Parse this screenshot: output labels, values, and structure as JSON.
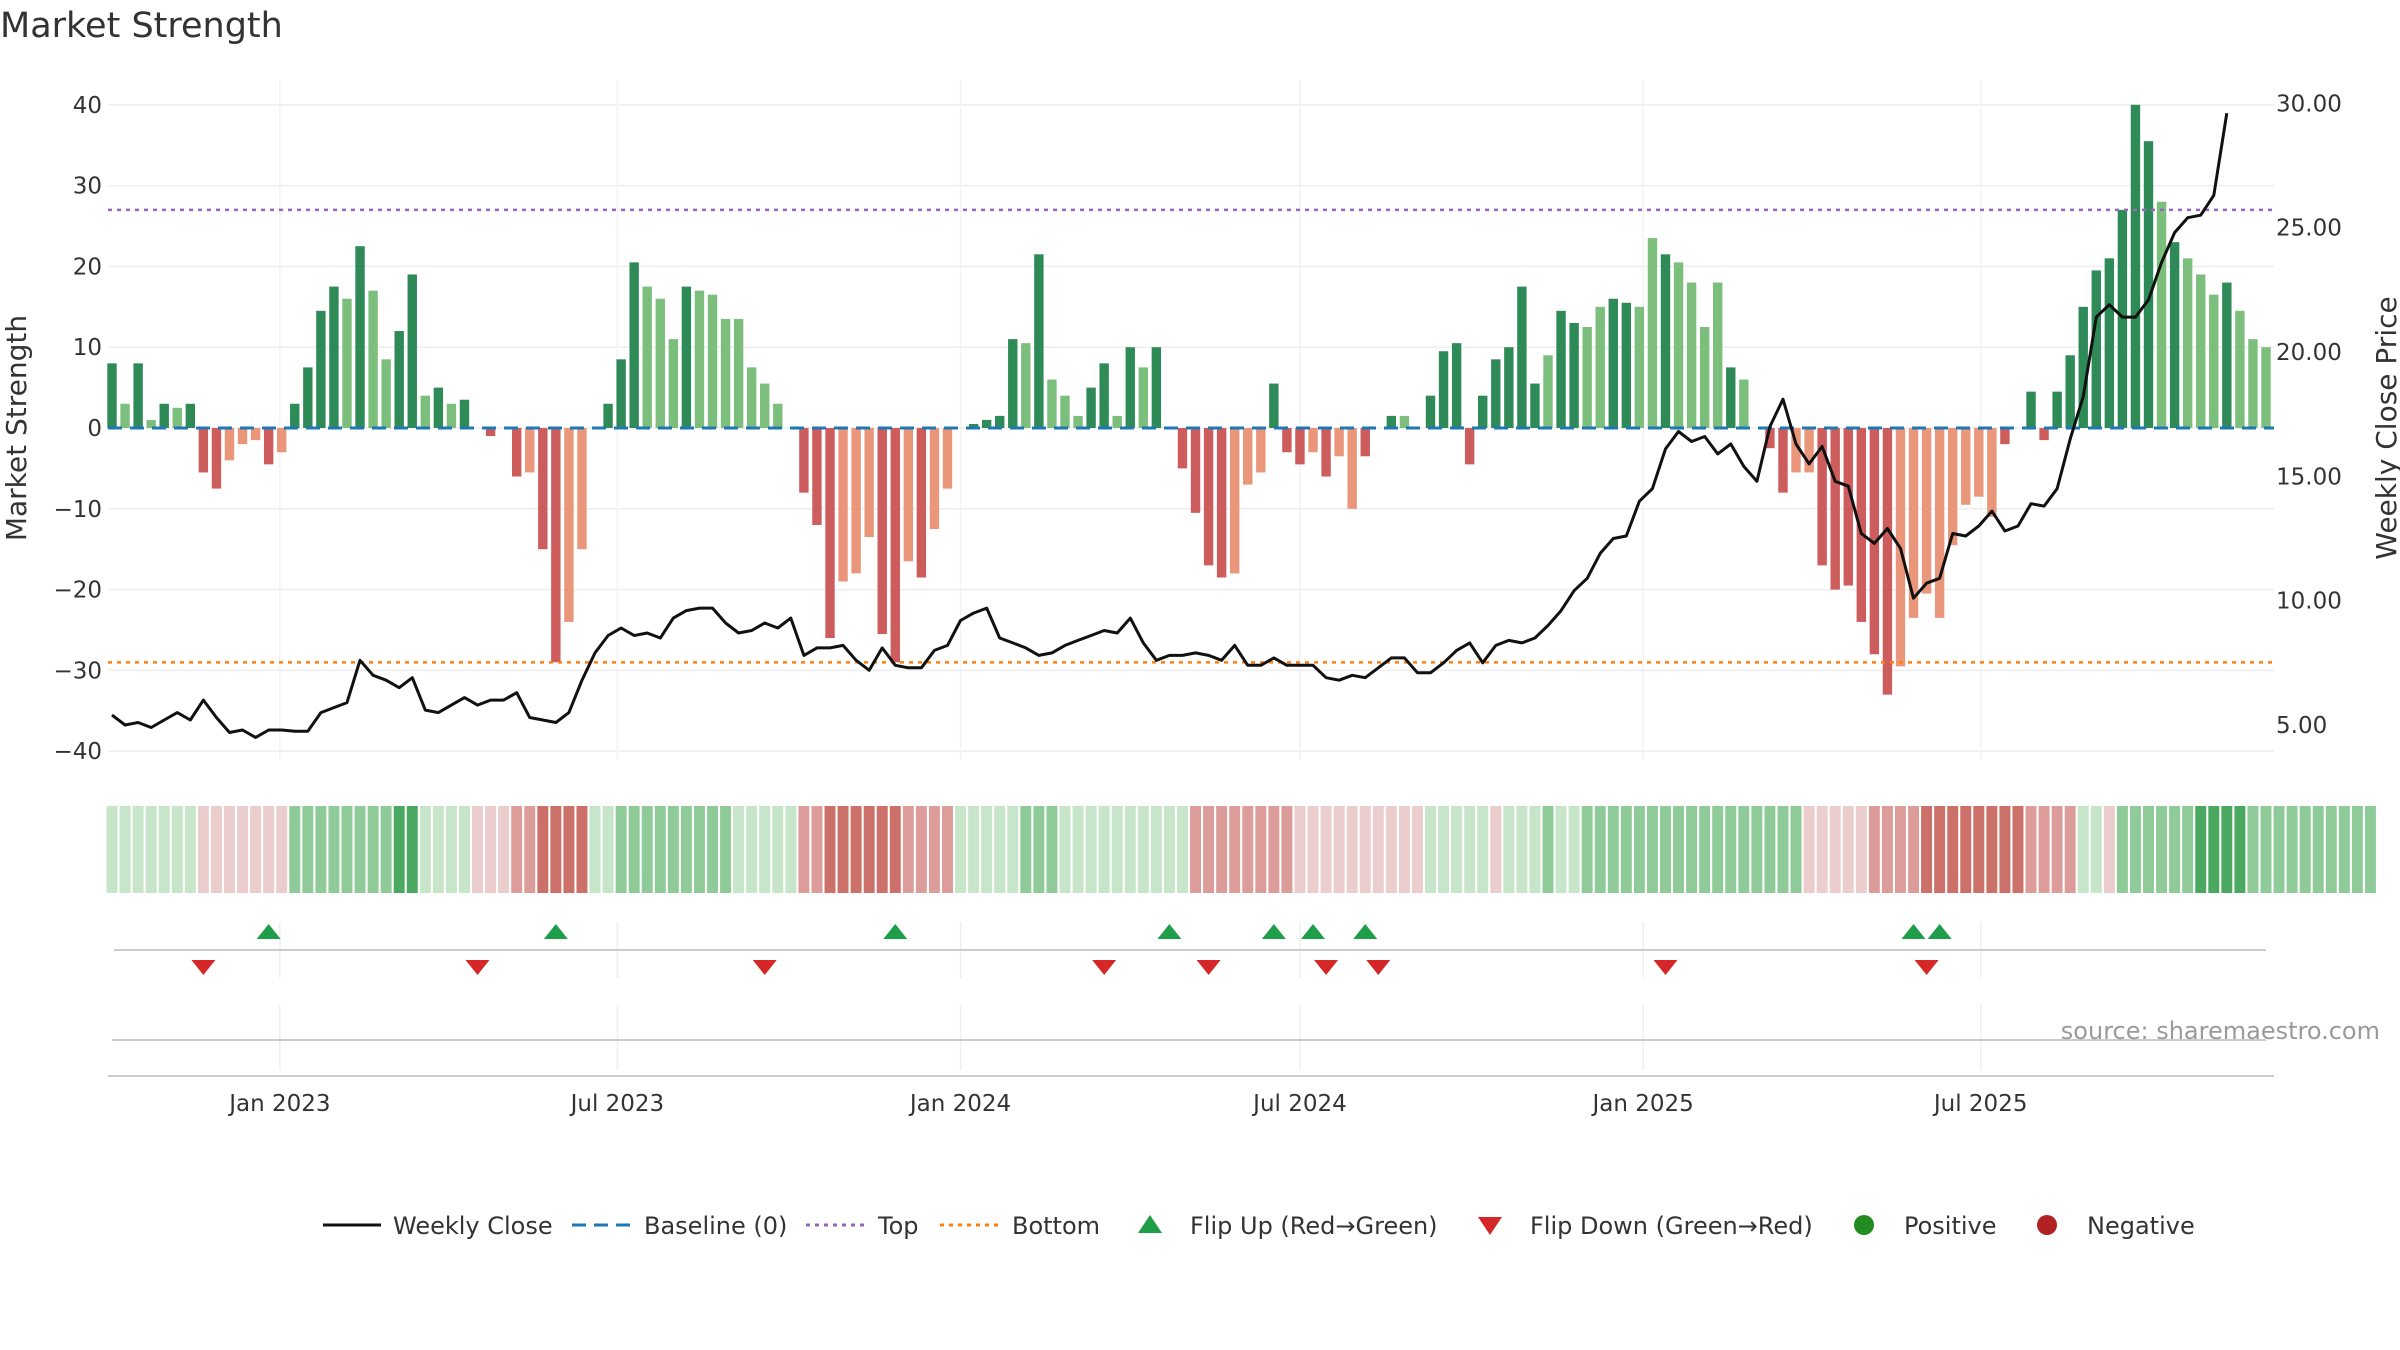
{
  "title": "Market Strength",
  "source": "source: sharemaestro.com",
  "colors": {
    "strong_green": "#2e8b57",
    "light_green": "#7cbf7c",
    "strong_red": "#cd5c5c",
    "light_red": "#e9967a",
    "line": "#111111",
    "baseline": "#1f77b4",
    "top": "#9467bd",
    "bottom": "#ff7f0e",
    "flip_up": "#1e9e48",
    "flip_down": "#d62728",
    "positive": "#228b22",
    "negative": "#b22222"
  },
  "chart_data": {
    "type": "bar",
    "title": "Market Strength",
    "ylabel": "Market Strength",
    "y2label": "Weekly Close Price",
    "ylim": [
      -40,
      40
    ],
    "y2lim": [
      5,
      30
    ],
    "yticks": [
      "40",
      "30",
      "20",
      "10",
      "0",
      "−10",
      "−20",
      "−30",
      "−40"
    ],
    "y2ticks": [
      "30.00",
      "25.00",
      "20.00",
      "15.00",
      "10.00",
      "5.00"
    ],
    "xticks": [
      "Jan 2023",
      "Jul 2023",
      "Jan 2024",
      "Jul 2024",
      "Jan 2025",
      "Jul 2025"
    ],
    "top_level": 27,
    "bottom_level": -29,
    "start_date": "2022-10-03",
    "strength": [
      8,
      3,
      8,
      1,
      3,
      2.5,
      3,
      -5.5,
      -7.5,
      -4,
      -2,
      -1.5,
      -4.5,
      -3,
      3,
      7.5,
      14.5,
      17.5,
      16,
      22.5,
      17,
      8.5,
      12,
      19,
      4,
      5,
      3,
      3.5,
      0,
      -1,
      0,
      -6,
      -5.5,
      -15,
      -29,
      -24,
      -15,
      0,
      3,
      8.5,
      20.5,
      17.5,
      16,
      11,
      17.5,
      17,
      16.5,
      13.5,
      13.5,
      7.5,
      5.5,
      3,
      0,
      -8,
      -12,
      -26,
      -19,
      -18,
      -13.5,
      -25.5,
      -29,
      -16.5,
      -18.5,
      -12.5,
      -7.5,
      0,
      0.5,
      1,
      1.5,
      11,
      10.5,
      21.5,
      6,
      4,
      1.5,
      5,
      8,
      1.5,
      10,
      7.5,
      10,
      0,
      -5,
      -10.5,
      -17,
      -18.5,
      -18,
      -7,
      -5.5,
      5.5,
      -3,
      -4.5,
      -3,
      -6,
      -3.5,
      -10,
      -3.5,
      0,
      1.5,
      1.5,
      0,
      4,
      9.5,
      10.5,
      -4.5,
      4,
      8.5,
      10,
      17.5,
      5.5,
      9,
      14.5,
      13,
      12.5,
      15,
      16,
      15.5,
      15,
      23.5,
      21.5,
      20.5,
      18,
      12.5,
      18,
      7.5,
      6,
      0,
      -2.5,
      -8,
      -5.5,
      -5.5,
      -17,
      -20,
      -19.5,
      -24,
      -28,
      -33,
      -29.5,
      -23.5,
      -20.5,
      -23.5,
      -14.5,
      -9.5,
      -8.5,
      -11,
      -2,
      0,
      4.5,
      -1.5,
      4.5,
      9,
      15,
      19.5,
      21,
      27,
      40,
      35.5,
      28,
      23,
      21,
      19,
      16.5,
      18,
      14.5,
      11,
      10
    ],
    "bar_tone": [
      "s",
      "l",
      "s",
      "l",
      "s",
      "l",
      "s",
      "s",
      "s",
      "l",
      "l",
      "l",
      "s",
      "l",
      "s",
      "s",
      "s",
      "s",
      "l",
      "s",
      "l",
      "l",
      "s",
      "s",
      "l",
      "s",
      "l",
      "s",
      "s",
      "s",
      "s",
      "s",
      "l",
      "s",
      "s",
      "l",
      "l",
      "s",
      "s",
      "s",
      "s",
      "l",
      "l",
      "l",
      "s",
      "l",
      "l",
      "l",
      "l",
      "l",
      "l",
      "l",
      "s",
      "s",
      "s",
      "s",
      "l",
      "l",
      "l",
      "s",
      "s",
      "l",
      "s",
      "l",
      "l",
      "s",
      "s",
      "s",
      "s",
      "s",
      "l",
      "s",
      "l",
      "l",
      "l",
      "s",
      "s",
      "l",
      "s",
      "l",
      "s",
      "s",
      "s",
      "s",
      "s",
      "s",
      "l",
      "l",
      "l",
      "s",
      "s",
      "s",
      "l",
      "s",
      "l",
      "l",
      "s",
      "l",
      "s",
      "l",
      "l",
      "s",
      "s",
      "s",
      "s",
      "s",
      "s",
      "s",
      "s",
      "s",
      "l",
      "s",
      "s",
      "l",
      "l",
      "s",
      "s",
      "l",
      "l",
      "s",
      "l",
      "l",
      "l",
      "l",
      "s",
      "l",
      "l",
      "s",
      "s",
      "l",
      "l",
      "s",
      "s",
      "s",
      "s",
      "s",
      "s",
      "l",
      "l",
      "l",
      "l",
      "l",
      "l",
      "l",
      "l",
      "s",
      "l",
      "s",
      "s",
      "s",
      "s",
      "s",
      "s",
      "s",
      "s",
      "s",
      "s",
      "l",
      "s",
      "l",
      "l",
      "l",
      "s",
      "l",
      "l",
      "l"
    ],
    "weekly_close": [
      5.4,
      5,
      5.1,
      4.9,
      5.2,
      5.5,
      5.2,
      6,
      5.3,
      4.7,
      4.8,
      4.5,
      4.8,
      4.8,
      4.75,
      4.75,
      5.5,
      5.7,
      5.9,
      7.6,
      7,
      6.8,
      6.5,
      6.9,
      5.6,
      5.5,
      5.8,
      6.1,
      5.8,
      6,
      6,
      6.3,
      5.3,
      5.2,
      5.1,
      5.5,
      6.8,
      7.9,
      8.6,
      8.9,
      8.6,
      8.7,
      8.5,
      9.3,
      9.6,
      9.7,
      9.7,
      9.1,
      8.7,
      8.8,
      9.1,
      8.9,
      9.3,
      7.8,
      8.1,
      8.1,
      8.2,
      7.6,
      7.2,
      8.1,
      7.4,
      7.3,
      7.3,
      8,
      8.2,
      9.2,
      9.5,
      9.7,
      8.5,
      8.3,
      8.1,
      7.8,
      7.9,
      8.2,
      8.4,
      8.6,
      8.8,
      8.7,
      9.3,
      8.3,
      7.6,
      7.8,
      7.8,
      7.9,
      7.8,
      7.6,
      8.2,
      7.4,
      7.4,
      7.7,
      7.4,
      7.4,
      7.4,
      6.9,
      6.8,
      7,
      6.9,
      7.3,
      7.7,
      7.7,
      7.1,
      7.1,
      7.5,
      8,
      8.3,
      7.5,
      8.2,
      8.4,
      8.3,
      8.5,
      9,
      9.6,
      10.4,
      10.9,
      11.9,
      12.5,
      12.6,
      14,
      14.5,
      16.1,
      16.8,
      16.4,
      16.6,
      15.9,
      16.3,
      15.4,
      14.8,
      17,
      18.1,
      16.3,
      15.5,
      16.2,
      14.8,
      14.6,
      12.7,
      12.3,
      12.9,
      12.1,
      10.1,
      10.7,
      10.9,
      12.7,
      12.6,
      13,
      13.6,
      12.8,
      13,
      13.9,
      13.8,
      14.5,
      16.5,
      18.2,
      21.4,
      21.9,
      21.4,
      21.4,
      22.1,
      23.6,
      24.8,
      25.4,
      25.5,
      26.3,
      29.6
    ],
    "flip_up_weeks": [
      12,
      34,
      60,
      81,
      89,
      92,
      96,
      138,
      140
    ],
    "flip_down_weeks": [
      7,
      28,
      50,
      76,
      84,
      93,
      97,
      119,
      139
    ],
    "score_shade": [
      2,
      2,
      2,
      2,
      2,
      2,
      2,
      -2,
      -2,
      -2,
      -2,
      -2,
      -2,
      -2,
      3,
      3,
      3,
      3,
      3,
      3,
      3,
      3,
      4,
      4,
      2,
      2,
      2,
      2,
      -2,
      -2,
      -2,
      -3,
      -3,
      -4,
      -4,
      -4,
      -4,
      2,
      2,
      3,
      3,
      3,
      3,
      3,
      3,
      3,
      3,
      3,
      2,
      2,
      2,
      2,
      2,
      -3,
      -3,
      -4,
      -4,
      -4,
      -4,
      -4,
      -4,
      -3,
      -3,
      -3,
      -3,
      2,
      2,
      2,
      2,
      2,
      3,
      3,
      3,
      2,
      2,
      2,
      2,
      2,
      2,
      2,
      2,
      2,
      2,
      -3,
      -3,
      -3,
      -3,
      -3,
      -3,
      -3,
      -3,
      -2,
      -2,
      -2,
      -2,
      -2,
      -2,
      -2,
      -2,
      -2,
      -2,
      2,
      2,
      2,
      2,
      2,
      -2,
      2,
      2,
      2,
      3,
      2,
      2,
      3,
      3,
      3,
      3,
      3,
      3,
      3,
      3,
      3,
      3,
      3,
      3,
      3,
      3,
      3,
      3,
      3,
      -2,
      -2,
      -2,
      -2,
      -2,
      -3,
      -3,
      -3,
      -3,
      -4,
      -4,
      -4,
      -4,
      -4,
      -4,
      -4,
      -4,
      -3,
      -3,
      -3,
      -3,
      2,
      2,
      -2,
      3,
      3,
      3,
      3,
      3,
      3,
      4,
      4,
      4,
      4,
      3,
      3,
      3,
      3,
      3,
      3,
      3,
      3,
      3,
      3
    ]
  },
  "legend": [
    {
      "label": "Weekly Close",
      "symbol": "line-solid"
    },
    {
      "label": "Baseline (0)",
      "symbol": "line-dash"
    },
    {
      "label": "Top",
      "symbol": "line-dot-purple"
    },
    {
      "label": "Bottom",
      "symbol": "line-dot-orange"
    },
    {
      "label": "Flip Up (Red→Green)",
      "symbol": "triangle-up"
    },
    {
      "label": "Flip Down (Green→Red)",
      "symbol": "triangle-down"
    },
    {
      "label": "Positive",
      "symbol": "dot-green"
    },
    {
      "label": "Negative",
      "symbol": "dot-red"
    }
  ]
}
